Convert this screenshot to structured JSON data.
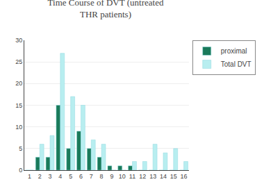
{
  "chart_data": {
    "type": "bar",
    "title": "Time Course of DVT (untreated\nTHR patients)",
    "categories": [
      1,
      2,
      3,
      4,
      5,
      6,
      7,
      8,
      9,
      10,
      11,
      12,
      13,
      14,
      15,
      16
    ],
    "series": [
      {
        "name": "proximal",
        "color": "#1a7a5a",
        "values": [
          0,
          3,
          3,
          15,
          5,
          9,
          5,
          3,
          1,
          1,
          1,
          0,
          0,
          0,
          0,
          0
        ]
      },
      {
        "name": "Total DVT",
        "color": "#b8eef0",
        "values": [
          0,
          6,
          8,
          27,
          17,
          15,
          7,
          6,
          0,
          0,
          2,
          2,
          6,
          4,
          5,
          2
        ]
      }
    ],
    "ylim": [
      0,
      30
    ],
    "yticks": [
      0,
      5,
      10,
      15,
      20,
      25,
      30
    ],
    "grid": true,
    "legend": "upper right"
  }
}
